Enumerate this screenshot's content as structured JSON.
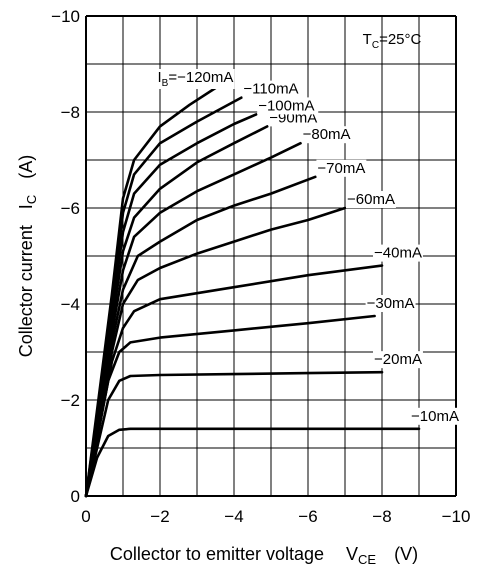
{
  "chart_data": {
    "type": "line",
    "xlabel": "Collector to emitter voltage",
    "xlabel_symbol": "V",
    "xlabel_sub": "CE",
    "xlabel_unit": "(V)",
    "ylabel": "Collector current",
    "ylabel_symbol": "I",
    "ylabel_sub": "C",
    "ylabel_unit": "(A)",
    "xlim": [
      0,
      -10
    ],
    "ylim": [
      0,
      -10
    ],
    "x_ticks": [
      0,
      -2,
      -4,
      -6,
      -8,
      -10
    ],
    "x_tick_labels": [
      "0",
      "−2",
      "−4",
      "−6",
      "−8",
      "−10"
    ],
    "y_ticks": [
      0,
      -2,
      -4,
      -6,
      -8,
      -10
    ],
    "y_tick_labels": [
      "0",
      "−2",
      "−4",
      "−6",
      "−8",
      "−10"
    ],
    "grid": true,
    "annotation": {
      "prefix": "T",
      "sub": "C",
      "rest": "=25°C",
      "placement": "top-right"
    },
    "ib_label_prefix": "I",
    "ib_label_sub": "B",
    "series": [
      {
        "name": "−10mA",
        "label": "−10mA",
        "x": [
          0,
          -0.3,
          -0.6,
          -0.9,
          -1.2,
          -3,
          -5,
          -7,
          -9
        ],
        "y": [
          0,
          -0.8,
          -1.25,
          -1.38,
          -1.4,
          -1.4,
          -1.4,
          -1.4,
          -1.4
        ]
      },
      {
        "name": "−20mA",
        "label": "−20mA",
        "x": [
          0,
          -0.3,
          -0.6,
          -0.9,
          -1.2,
          -2,
          -4,
          -6,
          -8
        ],
        "y": [
          0,
          -1.0,
          -2.0,
          -2.4,
          -2.5,
          -2.52,
          -2.54,
          -2.56,
          -2.58
        ]
      },
      {
        "name": "−30mA",
        "label": "−30mA",
        "x": [
          0,
          -0.3,
          -0.6,
          -0.9,
          -1.2,
          -2,
          -4,
          -6,
          -7.8
        ],
        "y": [
          0,
          -1.2,
          -2.4,
          -3.0,
          -3.2,
          -3.3,
          -3.45,
          -3.6,
          -3.75
        ]
      },
      {
        "name": "−40mA",
        "label": "−40mA",
        "x": [
          0,
          -0.35,
          -0.7,
          -1.0,
          -1.3,
          -2,
          -4,
          -6,
          -8
        ],
        "y": [
          0,
          -1.4,
          -2.8,
          -3.5,
          -3.85,
          -4.1,
          -4.35,
          -4.6,
          -4.8
        ]
      },
      {
        "name": "−60mA",
        "label": "−60mA",
        "x": [
          0,
          -0.35,
          -0.7,
          -1.0,
          -1.4,
          -2,
          -3,
          -4,
          -5,
          -6,
          -7
        ],
        "y": [
          0,
          -1.5,
          -3.0,
          -4.0,
          -4.5,
          -4.75,
          -5.05,
          -5.3,
          -5.55,
          -5.75,
          -6.0
        ]
      },
      {
        "name": "−70mA",
        "label": "−70mA",
        "x": [
          0,
          -0.35,
          -0.7,
          -1.0,
          -1.4,
          -2,
          -3,
          -4,
          -5,
          -6.2
        ],
        "y": [
          0,
          -1.6,
          -3.2,
          -4.3,
          -5.0,
          -5.3,
          -5.75,
          -6.05,
          -6.3,
          -6.65
        ]
      },
      {
        "name": "−80mA",
        "label": "−80mA",
        "x": [
          0,
          -0.35,
          -0.7,
          -1.0,
          -1.3,
          -2,
          -3,
          -4,
          -5,
          -5.8
        ],
        "y": [
          0,
          -1.7,
          -3.4,
          -4.7,
          -5.4,
          -5.9,
          -6.35,
          -6.7,
          -7.05,
          -7.35
        ]
      },
      {
        "name": "−90mA",
        "label": "−90mA",
        "x": [
          0,
          -0.35,
          -0.7,
          -1.0,
          -1.3,
          -2,
          -3,
          -4,
          -4.9
        ],
        "y": [
          0,
          -1.8,
          -3.6,
          -5.1,
          -5.8,
          -6.4,
          -6.95,
          -7.35,
          -7.7
        ]
      },
      {
        "name": "−100mA",
        "label": "−100mA",
        "x": [
          0,
          -0.35,
          -0.7,
          -1.0,
          -1.3,
          -2,
          -3,
          -4,
          -4.6
        ],
        "y": [
          0,
          -1.9,
          -3.8,
          -5.5,
          -6.3,
          -6.9,
          -7.35,
          -7.75,
          -7.95
        ]
      },
      {
        "name": "−110mA",
        "label": "−110mA",
        "x": [
          0,
          -0.35,
          -0.7,
          -1.0,
          -1.3,
          -2,
          -3,
          -4.2
        ],
        "y": [
          0,
          -2.0,
          -4.0,
          -5.9,
          -6.7,
          -7.35,
          -7.8,
          -8.3
        ]
      },
      {
        "name": "−120mA",
        "label": "−120mA",
        "x": [
          0,
          -0.35,
          -0.7,
          -1.0,
          -1.3,
          -2,
          -2.8,
          -3.5
        ],
        "y": [
          0,
          -2.1,
          -4.2,
          -6.2,
          -7.0,
          -7.7,
          -8.15,
          -8.5
        ]
      }
    ]
  }
}
